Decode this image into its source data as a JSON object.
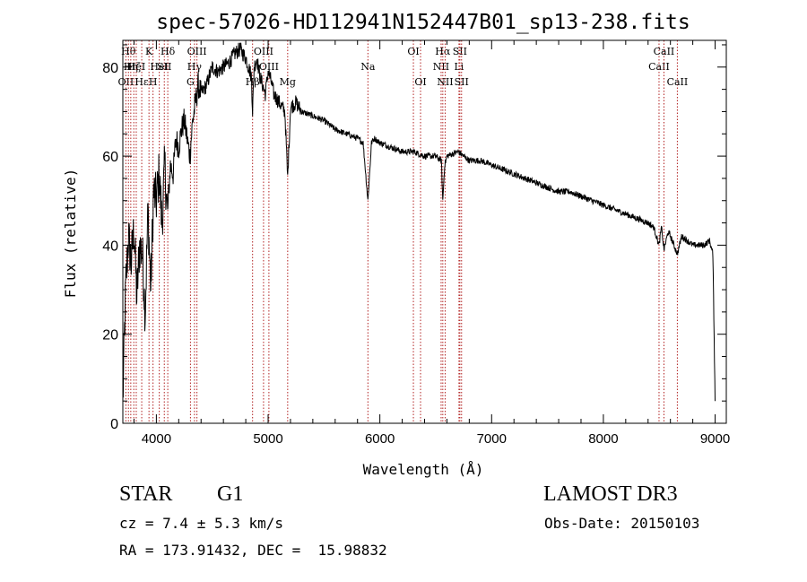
{
  "chart_data": {
    "type": "line",
    "title": "spec-57026-HD112941N152447B01_sp13-238.fits",
    "xlabel": "Wavelength (Å)",
    "ylabel": "Flux (relative)",
    "xlim": [
      3700,
      9100
    ],
    "ylim": [
      0,
      86
    ],
    "xticks": [
      4000,
      5000,
      6000,
      7000,
      8000,
      9000
    ],
    "yticks": [
      0,
      20,
      40,
      60,
      80
    ],
    "grid": false,
    "line_color": "#000000",
    "marker_color": "#b22222",
    "series": [
      {
        "x": [
          3700,
          3725,
          3750,
          3775,
          3800,
          3825,
          3850,
          3875,
          3900,
          3925,
          3950,
          3975,
          4000,
          4025,
          4050,
          4075,
          4100,
          4125,
          4150,
          4175,
          4200,
          4225,
          4250,
          4275,
          4300,
          4325,
          4350,
          4375,
          4400,
          4450,
          4500,
          4550,
          4600,
          4650,
          4700,
          4750,
          4800,
          4825,
          4850,
          4861,
          4875,
          4900,
          4925,
          4950,
          4975,
          5000,
          5025,
          5050,
          5100,
          5150,
          5175,
          5200,
          5250,
          5300,
          5400,
          5500,
          5600,
          5700,
          5800,
          5850,
          5893,
          5925,
          5950,
          6000,
          6100,
          6200,
          6300,
          6400,
          6500,
          6550,
          6563,
          6580,
          6600,
          6700,
          6800,
          6900,
          7000,
          7100,
          7200,
          7300,
          7400,
          7500,
          7600,
          7700,
          7800,
          7900,
          8000,
          8100,
          8200,
          8300,
          8400,
          8450,
          8498,
          8520,
          8542,
          8580,
          8600,
          8662,
          8700,
          8750,
          8800,
          8850,
          8900,
          8950,
          8980,
          9000
        ],
        "y": [
          5,
          30,
          42,
          36,
          44,
          28,
          40,
          38,
          25,
          48,
          30,
          52,
          50,
          56,
          45,
          58,
          47,
          58,
          56,
          64,
          62,
          66,
          68,
          64,
          60,
          68,
          72,
          76,
          74,
          76,
          80,
          79,
          80,
          81,
          83,
          84,
          82,
          80,
          78,
          70,
          80,
          82,
          78,
          76,
          74,
          79,
          77,
          74,
          72,
          70,
          55,
          71,
          72,
          70,
          69,
          68,
          66,
          65,
          64,
          63,
          50,
          63,
          64,
          63,
          62,
          61,
          61,
          60,
          60,
          59,
          50,
          58,
          60,
          61,
          59,
          59,
          58,
          57,
          56,
          55,
          54,
          53,
          52,
          52,
          51,
          50,
          49,
          48,
          47,
          46,
          45,
          44,
          40,
          44,
          39,
          43,
          42,
          38,
          42,
          41,
          40,
          40,
          40,
          41,
          38,
          5
        ]
      }
    ],
    "line_markers": [
      {
        "x": 3727,
        "label": "OII",
        "row": 2
      },
      {
        "x": 3750,
        "label": "Hθ",
        "row": 0
      },
      {
        "x": 3771,
        "label": "Hη",
        "row": 1
      },
      {
        "x": 3798,
        "label": "Hζ",
        "row": 1
      },
      {
        "x": 3820,
        "label": "HeI",
        "row": 1
      },
      {
        "x": 3869,
        "label": "Hε",
        "row": 2
      },
      {
        "x": 3934,
        "label": "K",
        "row": 0
      },
      {
        "x": 3970,
        "label": "H",
        "row": 2
      },
      {
        "x": 4026,
        "label": "HeI",
        "row": 1
      },
      {
        "x": 4071,
        "label": "SII",
        "row": 1
      },
      {
        "x": 4102,
        "label": "Hδ",
        "row": 0
      },
      {
        "x": 4305,
        "label": "G",
        "row": 2
      },
      {
        "x": 4341,
        "label": "Hγ",
        "row": 1
      },
      {
        "x": 4363,
        "label": "OIII",
        "row": 0
      },
      {
        "x": 4861,
        "label": "Hβ",
        "row": 2
      },
      {
        "x": 4959,
        "label": "OIII",
        "row": 0
      },
      {
        "x": 5007,
        "label": "OIII",
        "row": 1
      },
      {
        "x": 5175,
        "label": "Mg",
        "row": 2
      },
      {
        "x": 5893,
        "label": "Na",
        "row": 1
      },
      {
        "x": 6300,
        "label": "OI",
        "row": 0
      },
      {
        "x": 6364,
        "label": "OI",
        "row": 2
      },
      {
        "x": 6548,
        "label": "NII",
        "row": 1
      },
      {
        "x": 6563,
        "label": "Hα",
        "row": 0
      },
      {
        "x": 6584,
        "label": "NII",
        "row": 2
      },
      {
        "x": 6708,
        "label": "Li",
        "row": 1
      },
      {
        "x": 6716,
        "label": "SII",
        "row": 0
      },
      {
        "x": 6731,
        "label": "SII",
        "row": 2
      },
      {
        "x": 8498,
        "label": "CaII",
        "row": 1
      },
      {
        "x": 8542,
        "label": "CaII",
        "row": 0
      },
      {
        "x": 8662,
        "label": "CaII",
        "row": 2
      }
    ]
  },
  "info": {
    "object_class": "STAR",
    "subclass": "G1",
    "survey": "LAMOST DR3",
    "redshift": "cz = 7.4 ± 5.3 km/s",
    "obs_date": "Obs-Date: 20150103",
    "coords": "RA = 173.91432, DEC =  15.98832"
  }
}
